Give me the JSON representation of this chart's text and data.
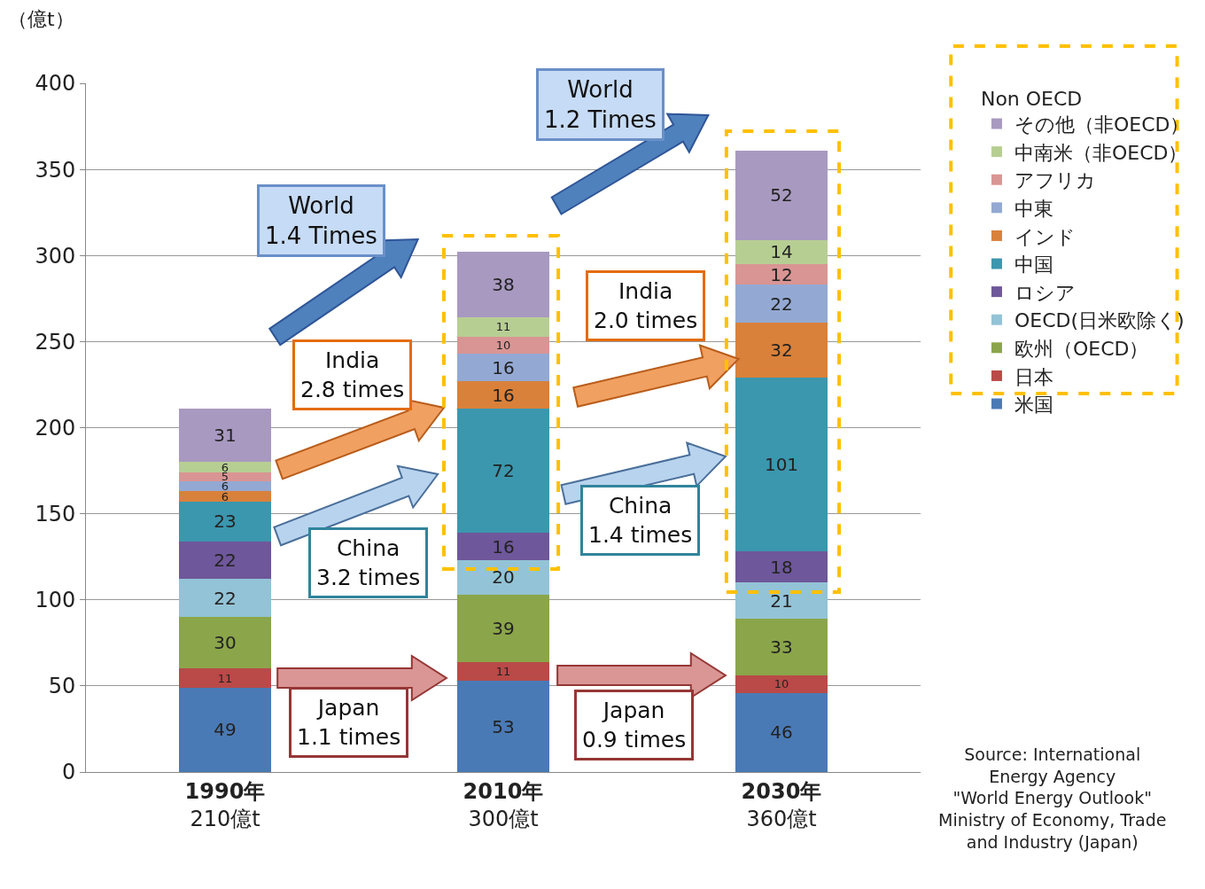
{
  "chart_data": {
    "type": "bar",
    "stacked": true,
    "ylabel": "（億t）",
    "legend_title": "Non OECD",
    "categories": [
      "1990年\n210億t",
      "2010年\n300億t",
      "2030年\n360億t"
    ],
    "series": [
      {
        "name": "米国",
        "color": "#4a7ab5",
        "values": [
          49,
          53,
          46
        ]
      },
      {
        "name": "日本",
        "color": "#b94a48",
        "values": [
          11,
          11,
          10
        ]
      },
      {
        "name": "欧州（OECD）",
        "color": "#8ba54a",
        "values": [
          30,
          39,
          33
        ]
      },
      {
        "name": "OECD(日米欧除く)",
        "color": "#93c3d6",
        "values": [
          22,
          20,
          21
        ]
      },
      {
        "name": "ロシア",
        "color": "#6e579a",
        "values": [
          22,
          16,
          18
        ]
      },
      {
        "name": "中国",
        "color": "#3b97ae",
        "values": [
          23,
          72,
          101
        ]
      },
      {
        "name": "インド",
        "color": "#d9813a",
        "values": [
          6,
          16,
          32
        ]
      },
      {
        "name": "中東",
        "color": "#93a9d3",
        "values": [
          6,
          16,
          22
        ]
      },
      {
        "name": "アフリカ",
        "color": "#d99593",
        "values": [
          5,
          10,
          12
        ]
      },
      {
        "name": "中南米（非OECD）",
        "color": "#b7ce93",
        "values": [
          6,
          11,
          14
        ]
      },
      {
        "name": "その他（非OECD）",
        "color": "#a899c0",
        "values": [
          31,
          38,
          52
        ]
      }
    ],
    "ylim": [
      0,
      400
    ],
    "yticks": [
      0,
      50,
      100,
      150,
      200,
      250,
      300,
      350,
      400
    ],
    "grid": "y",
    "legend": "right",
    "data_labels": true,
    "annotations": [
      "World\n1.4 Times",
      "World\n1.2 Times",
      "India\n2.8 times",
      "India\n2.0 times",
      "China\n3.2 times",
      "China\n1.4 times",
      "Japan\n1.1 times",
      "Japan\n0.9 times",
      "Source: International\nEnergy Agency\n\"World Energy Outlook\"\nMinistry of Economy, Trade\nand Industry (Japan)"
    ]
  }
}
